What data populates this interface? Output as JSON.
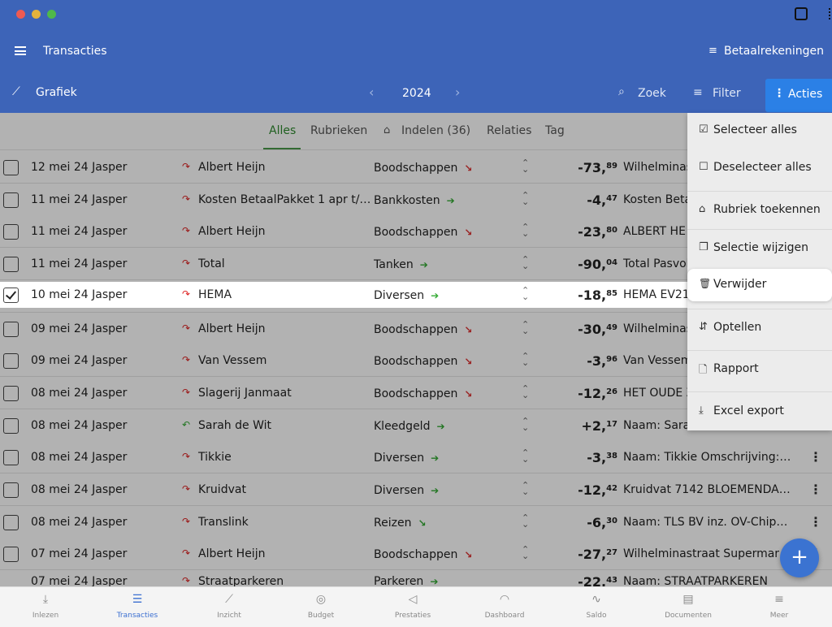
{
  "header": {
    "title": "Transacties",
    "accounts_label": "Betaalrekeningen",
    "chart_label": "Grafiek",
    "year": "2024",
    "search_label": "Zoek",
    "filter_label": "Filter",
    "actions_label": "Acties"
  },
  "tabs": [
    {
      "label": "Alles"
    },
    {
      "label": "Rubrieken"
    },
    {
      "label": "Indelen (36)"
    },
    {
      "label": "Relaties"
    },
    {
      "label": "Tag"
    }
  ],
  "rows": [
    {
      "date": "12 mei 24",
      "who": "Jasper",
      "desc": "Albert Heijn",
      "cat": "Boodschappen",
      "amt_main": "-73,",
      "amt_cents": "89",
      "cp": "Wilhelminas"
    },
    {
      "date": "11 mei 24",
      "who": "Jasper",
      "desc": "Kosten BetaalPakket 1 apr t/…",
      "cat": "Bankkosten",
      "amt_main": "-4,",
      "amt_cents": "47",
      "cp": "Kosten Beta"
    },
    {
      "date": "11 mei 24",
      "who": "Jasper",
      "desc": "Albert Heijn",
      "cat": "Boodschappen",
      "amt_main": "-23,",
      "amt_cents": "80",
      "cp": "ALBERT HE"
    },
    {
      "date": "11 mei 24",
      "who": "Jasper",
      "desc": "Total",
      "cat": "Tanken",
      "amt_main": "-90,",
      "amt_cents": "04",
      "cp": "Total Pasvol"
    },
    {
      "date": "10 mei 24",
      "who": "Jasper",
      "desc": "HEMA",
      "cat": "Diversen",
      "amt_main": "-18,",
      "amt_cents": "85",
      "cp": "HEMA EV21"
    },
    {
      "date": "09 mei 24",
      "who": "Jasper",
      "desc": "Albert Heijn",
      "cat": "Boodschappen",
      "amt_main": "-30,",
      "amt_cents": "49",
      "cp": "Wilhelminas"
    },
    {
      "date": "09 mei 24",
      "who": "Jasper",
      "desc": "Van Vessem",
      "cat": "Boodschappen",
      "amt_main": "-3,",
      "amt_cents": "96",
      "cp": "Van Vessem"
    },
    {
      "date": "08 mei 24",
      "who": "Jasper",
      "desc": "Slagerij Janmaat",
      "cat": "Boodschappen",
      "amt_main": "-12,",
      "amt_cents": "26",
      "cp": "HET OUDE Z"
    },
    {
      "date": "08 mei 24",
      "who": "Jasper",
      "desc": "Sarah de Wit",
      "cat": "Kleedgeld",
      "amt_main": "+2,",
      "amt_cents": "17",
      "cp": "Naam: Sara"
    },
    {
      "date": "08 mei 24",
      "who": "Jasper",
      "desc": "Tikkie",
      "cat": "Diversen",
      "amt_main": "-3,",
      "amt_cents": "38",
      "cp": "Naam: Tikkie Omschrijving:…"
    },
    {
      "date": "08 mei 24",
      "who": "Jasper",
      "desc": "Kruidvat",
      "cat": "Diversen",
      "amt_main": "-12,",
      "amt_cents": "42",
      "cp": "Kruidvat 7142 BLOEMENDA…"
    },
    {
      "date": "08 mei 24",
      "who": "Jasper",
      "desc": "Translink",
      "cat": "Reizen",
      "amt_main": "-6,",
      "amt_cents": "30",
      "cp": "Naam: TLS BV inz. OV-Chip…"
    },
    {
      "date": "07 mei 24",
      "who": "Jasper",
      "desc": "Albert Heijn",
      "cat": "Boodschappen",
      "amt_main": "-27,",
      "amt_cents": "27",
      "cp": "Wilhelminastraat Supermar…"
    }
  ],
  "partial_row": {
    "date": "07 mei 24",
    "who": "Jasper",
    "desc": "Straatparkeren",
    "cat": "Parkeren",
    "amt_main": "-22,",
    "amt_cents": "43",
    "cp": "Naam: STRAATPARKEREN"
  },
  "menu": [
    {
      "icon": "☑",
      "label": "Selecteer alles"
    },
    {
      "icon": "☐",
      "label": "Deselecteer alles"
    },
    {
      "icon": "⌂",
      "label": "Rubriek toekennen"
    },
    {
      "icon": "❐",
      "label": "Selectie wijzigen"
    },
    {
      "icon": "🗑",
      "label": "Verwijder"
    },
    {
      "icon": "⇵",
      "label": "Optellen"
    },
    {
      "icon": "🗋",
      "label": "Rapport"
    },
    {
      "icon": "⤓",
      "label": "Excel export"
    }
  ],
  "fab_label": "+",
  "bottom_nav": [
    {
      "icon": "⤓",
      "label": "Inlezen"
    },
    {
      "icon": "☰",
      "label": "Transacties"
    },
    {
      "icon": "⟋",
      "label": "Inzicht"
    },
    {
      "icon": "◎",
      "label": "Budget"
    },
    {
      "icon": "◁",
      "label": "Prestaties"
    },
    {
      "icon": "◠",
      "label": "Dashboard"
    },
    {
      "icon": "∿",
      "label": "Saldo"
    },
    {
      "icon": "▤",
      "label": "Documenten"
    },
    {
      "icon": "≡",
      "label": "Meer"
    }
  ],
  "colors": {
    "primary": "#3d64b8",
    "accent": "#2b80e6",
    "negative_icon": "#d22",
    "positive_icon": "#3a3",
    "tab_active": "#2f8a2f"
  }
}
